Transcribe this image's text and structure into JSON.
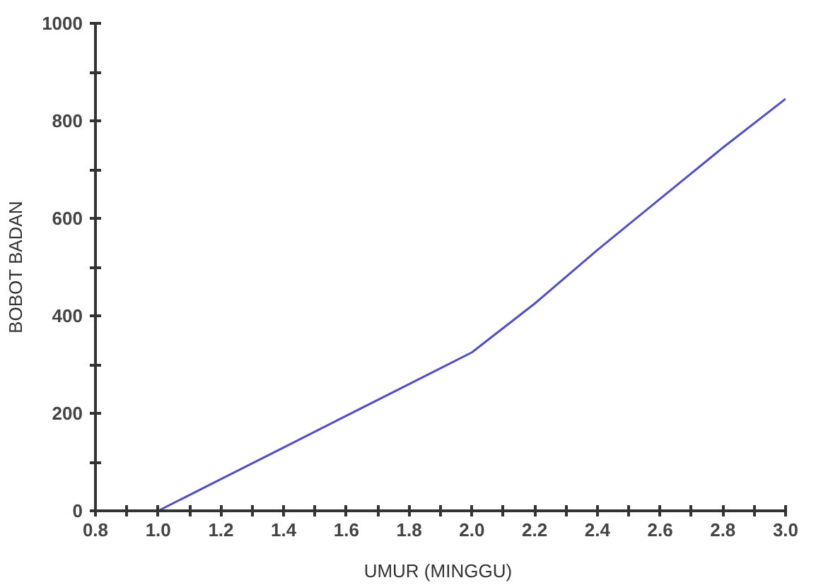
{
  "chart_data": {
    "type": "line",
    "xlabel": "UMUR  (MINGGU)",
    "ylabel": "BOBOT BADAN",
    "x": [
      1.0,
      1.2,
      1.4,
      1.6,
      1.8,
      2.0,
      2.2,
      2.4,
      2.6,
      2.8,
      3.0
    ],
    "series": [
      {
        "color": "#5050c0",
        "values": [
          0,
          65,
          130,
          195,
          260,
          325,
          425,
          535,
          640,
          745,
          845
        ]
      }
    ],
    "xlim": [
      0.8,
      3.0
    ],
    "ylim": [
      0,
      1000
    ],
    "xticks": [
      0.8,
      {
        "value": 0.9,
        "label": null
      },
      "1.0",
      {
        "value": 1.1,
        "label": null
      },
      1.2,
      {
        "value": 1.3,
        "label": null
      },
      1.4,
      {
        "value": 1.5,
        "label": null
      },
      1.6,
      {
        "value": 1.7,
        "label": null
      },
      1.8,
      {
        "value": 1.9,
        "label": null
      },
      "2.0",
      {
        "value": 2.1,
        "label": null
      },
      2.2,
      {
        "value": 2.3,
        "label": null
      },
      2.4,
      {
        "value": 2.5,
        "label": null
      },
      2.6,
      {
        "value": 2.7,
        "label": null
      },
      2.8,
      {
        "value": 2.9,
        "label": null
      },
      "3.0"
    ],
    "yticks": [
      0,
      {
        "value": 100,
        "label": null
      },
      200,
      {
        "value": 300,
        "label": null
      },
      400,
      {
        "value": 500,
        "label": null
      },
      600,
      {
        "value": 700,
        "label": null
      },
      800,
      {
        "value": 900,
        "label": null
      },
      1000
    ],
    "grid": false,
    "marker": "none",
    "line_style": "solid"
  }
}
